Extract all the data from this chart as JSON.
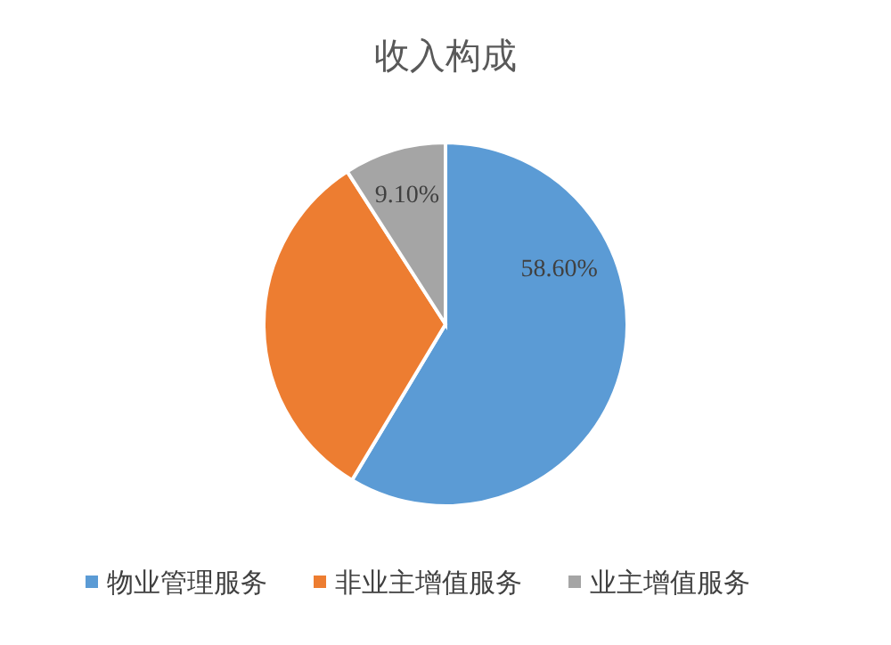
{
  "chart_data": {
    "type": "pie",
    "title": "收入构成",
    "categories": [
      "物业管理服务",
      "非业主增值服务",
      "业主增值服务"
    ],
    "values": [
      58.6,
      32.3,
      9.1
    ],
    "colors": [
      "#5b9bd5",
      "#ed7d31",
      "#a5a5a5"
    ],
    "value_labels": [
      "58.60%",
      null,
      "9.10%"
    ],
    "legend": "bottom"
  }
}
